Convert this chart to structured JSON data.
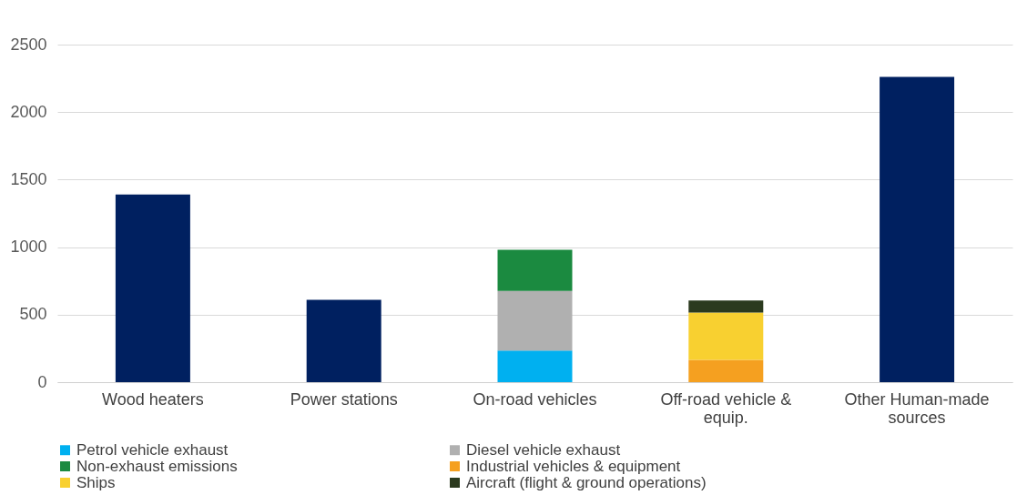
{
  "chart_data": {
    "type": "bar",
    "stacked": true,
    "categories": [
      "Wood heaters",
      "Power stations",
      "On-road vehicles",
      "Off-road vehicle & equip.",
      "Other Human-made sources"
    ],
    "series": [
      {
        "color": "#002060",
        "values": [
          1390,
          610,
          null,
          null,
          2260
        ]
      },
      {
        "name": "Petrol vehicle exhaust",
        "color": "#00b0f0",
        "values": [
          null,
          null,
          235,
          null,
          null
        ]
      },
      {
        "name": "Diesel vehicle exhaust",
        "color": "#b0b0b0",
        "values": [
          null,
          null,
          440,
          null,
          null
        ]
      },
      {
        "name": "Non-exhaust emissions",
        "color": "#1b8a40",
        "values": [
          null,
          null,
          305,
          null,
          null
        ]
      },
      {
        "name": "Industrial vehicles & equipment",
        "color": "#f5a020",
        "values": [
          null,
          null,
          null,
          165,
          null
        ]
      },
      {
        "name": "Ships",
        "color": "#f8d030",
        "values": [
          null,
          null,
          null,
          350,
          null
        ]
      },
      {
        "name": "Aircraft (flight & ground operations)",
        "color": "#2b3a1e",
        "values": [
          null,
          null,
          null,
          90,
          null
        ]
      }
    ],
    "ylim": [
      0,
      2500
    ],
    "yticks": [
      0,
      500,
      1000,
      1500,
      2000,
      2500
    ],
    "grid": "y",
    "legend": "bottom"
  }
}
